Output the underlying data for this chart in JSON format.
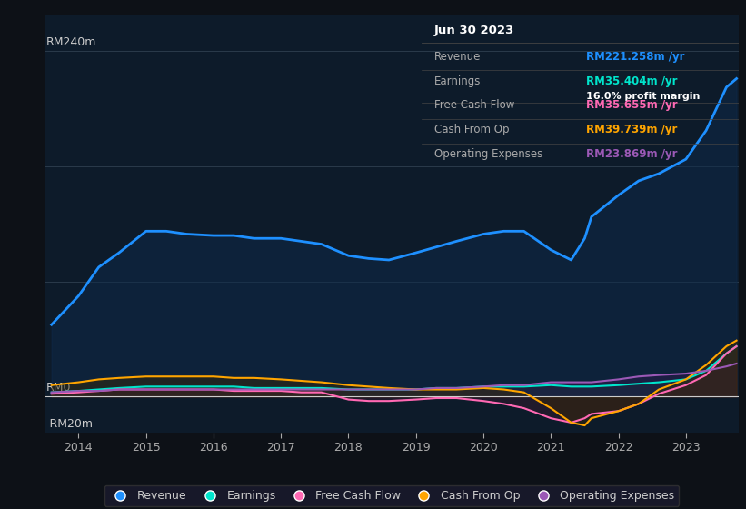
{
  "background_color": "#0d1117",
  "plot_bg_color": "#0d1b2a",
  "ylabel_top": "RM240m",
  "ylabel_zero": "RM0",
  "ylabel_neg": "-RM20m",
  "line_colors": {
    "revenue": "#1e90ff",
    "earnings": "#00e5cc",
    "free_cash_flow": "#ff69b4",
    "cash_from_op": "#ffa500",
    "operating_expenses": "#9b59b6"
  },
  "fill_colors": {
    "revenue": "#0d2a4a",
    "earnings": "#0d3d35",
    "free_cash_flow": "#3d1a2e",
    "cash_from_op": "#3d2a00",
    "operating_expenses": "#2d1a4d"
  },
  "legend_labels": [
    "Revenue",
    "Earnings",
    "Free Cash Flow",
    "Cash From Op",
    "Operating Expenses"
  ],
  "info_box": {
    "date": "Jun 30 2023",
    "rows": [
      {
        "label": "Revenue",
        "value": "RM221.258m /yr",
        "value_color": "#1e90ff",
        "extra": null
      },
      {
        "label": "Earnings",
        "value": "RM35.404m /yr",
        "value_color": "#00e5cc",
        "extra": "16.0% profit margin"
      },
      {
        "label": "Free Cash Flow",
        "value": "RM35.655m /yr",
        "value_color": "#ff69b4",
        "extra": null
      },
      {
        "label": "Cash From Op",
        "value": "RM39.739m /yr",
        "value_color": "#ffa500",
        "extra": null
      },
      {
        "label": "Operating Expenses",
        "value": "RM23.869m /yr",
        "value_color": "#9b59b6",
        "extra": null
      }
    ]
  },
  "x_years": [
    2014,
    2015,
    2016,
    2017,
    2018,
    2019,
    2020,
    2021,
    2022,
    2023
  ],
  "xlim": [
    2013.5,
    2023.78
  ],
  "ylim": [
    -25,
    265
  ]
}
